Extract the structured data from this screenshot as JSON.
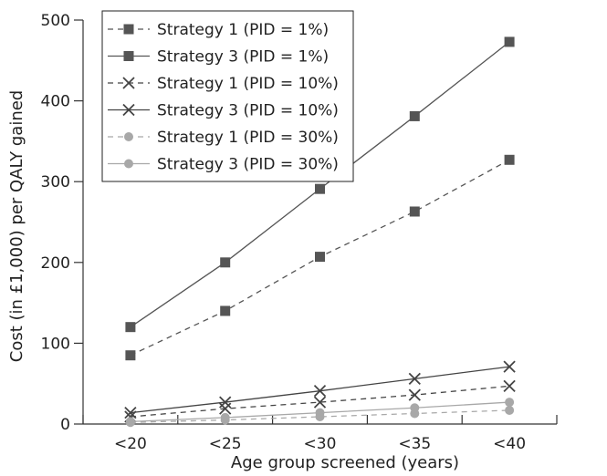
{
  "chart_data": {
    "type": "line",
    "title": "",
    "xlabel": "Age group screened (years)",
    "ylabel": "Cost (in £1,000) per QALY gained",
    "categories": [
      "<20",
      "<25",
      "<30",
      "<35",
      "<40"
    ],
    "ylim": [
      0,
      500
    ],
    "yticks": [
      0,
      100,
      200,
      300,
      400,
      500
    ],
    "grid": false,
    "legend_position": "top-left",
    "series": [
      {
        "name": "Strategy 1 (PID = 1%)",
        "values": [
          85,
          140,
          207,
          263,
          327
        ],
        "marker": "square",
        "line": "dashed",
        "color": "#555555"
      },
      {
        "name": "Strategy 3 (PID = 1%)",
        "values": [
          120,
          200,
          291,
          381,
          473
        ],
        "marker": "square",
        "line": "solid",
        "color": "#555555"
      },
      {
        "name": "Strategy 1 (PID = 10%)",
        "values": [
          9,
          19,
          27,
          36,
          47
        ],
        "marker": "x",
        "line": "dashed",
        "color": "#444444"
      },
      {
        "name": "Strategy 3 (PID = 10%)",
        "values": [
          14,
          27,
          41,
          56,
          71
        ],
        "marker": "x",
        "line": "solid",
        "color": "#444444"
      },
      {
        "name": "Strategy 1 (PID = 30%)",
        "values": [
          2,
          5,
          9,
          13,
          17
        ],
        "marker": "circle",
        "line": "dashed",
        "color": "#a8a8a8"
      },
      {
        "name": "Strategy 3 (PID = 30%)",
        "values": [
          3,
          8,
          14,
          20,
          27
        ],
        "marker": "circle",
        "line": "solid",
        "color": "#a8a8a8"
      }
    ]
  }
}
